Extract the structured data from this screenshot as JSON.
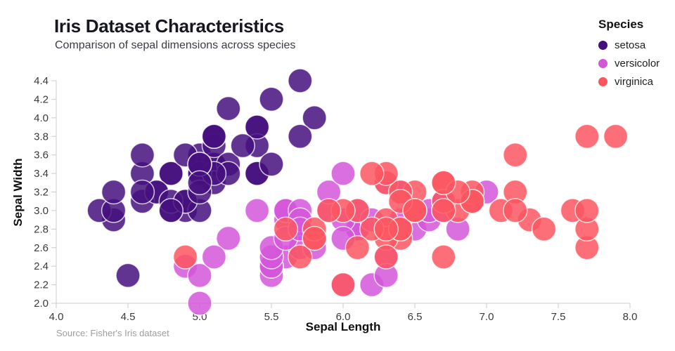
{
  "header": {
    "title": "Iris Dataset Characteristics",
    "subtitle": "Comparison of sepal dimensions across species"
  },
  "legend": {
    "title": "Species"
  },
  "source": {
    "text": "Source: Fisher's Iris dataset"
  },
  "chart_data": {
    "type": "scatter",
    "title": "Iris Dataset Characteristics",
    "subtitle": "Comparison of sepal dimensions across species",
    "xlabel": "Sepal Length",
    "ylabel": "Sepal Width",
    "xlim": [
      4.0,
      8.0
    ],
    "ylim": [
      2.0,
      4.4
    ],
    "grid": false,
    "legend_position": "top-right",
    "x_ticks": [
      "4.0",
      "4.5",
      "5.0",
      "5.5",
      "6.0",
      "6.5",
      "7.0",
      "7.5",
      "8.0"
    ],
    "y_ticks": [
      "2.0",
      "2.2",
      "2.4",
      "2.6",
      "2.8",
      "3.0",
      "3.2",
      "3.4",
      "3.6",
      "3.8",
      "4.0",
      "4.2",
      "4.4"
    ],
    "series": [
      {
        "name": "setosa",
        "color": "#45107e",
        "points": [
          [
            5.1,
            3.5
          ],
          [
            4.9,
            3.0
          ],
          [
            4.7,
            3.2
          ],
          [
            4.6,
            3.1
          ],
          [
            5.0,
            3.6
          ],
          [
            5.4,
            3.9
          ],
          [
            4.6,
            3.4
          ],
          [
            5.0,
            3.4
          ],
          [
            4.4,
            2.9
          ],
          [
            4.9,
            3.1
          ],
          [
            5.4,
            3.7
          ],
          [
            4.8,
            3.4
          ],
          [
            4.8,
            3.0
          ],
          [
            4.3,
            3.0
          ],
          [
            5.8,
            4.0
          ],
          [
            5.7,
            4.4
          ],
          [
            5.4,
            3.9
          ],
          [
            5.1,
            3.5
          ],
          [
            5.7,
            3.8
          ],
          [
            5.1,
            3.8
          ],
          [
            5.4,
            3.4
          ],
          [
            5.1,
            3.7
          ],
          [
            4.6,
            3.6
          ],
          [
            5.1,
            3.3
          ],
          [
            4.8,
            3.4
          ],
          [
            5.0,
            3.0
          ],
          [
            5.0,
            3.4
          ],
          [
            5.2,
            3.5
          ],
          [
            5.2,
            3.4
          ],
          [
            4.7,
            3.2
          ],
          [
            4.8,
            3.1
          ],
          [
            5.4,
            3.4
          ],
          [
            5.2,
            4.1
          ],
          [
            5.5,
            4.2
          ],
          [
            4.9,
            3.1
          ],
          [
            5.0,
            3.2
          ],
          [
            5.5,
            3.5
          ],
          [
            4.9,
            3.6
          ],
          [
            4.4,
            3.0
          ],
          [
            5.1,
            3.4
          ],
          [
            5.0,
            3.5
          ],
          [
            4.5,
            2.3
          ],
          [
            4.4,
            3.2
          ],
          [
            5.0,
            3.5
          ],
          [
            5.1,
            3.8
          ],
          [
            4.8,
            3.0
          ],
          [
            5.1,
            3.8
          ],
          [
            4.6,
            3.2
          ],
          [
            5.3,
            3.7
          ],
          [
            5.0,
            3.3
          ]
        ]
      },
      {
        "name": "versicolor",
        "color": "#d356d9",
        "points": [
          [
            7.0,
            3.2
          ],
          [
            6.4,
            3.2
          ],
          [
            6.9,
            3.1
          ],
          [
            5.5,
            2.3
          ],
          [
            6.5,
            2.8
          ],
          [
            5.7,
            2.8
          ],
          [
            6.3,
            3.3
          ],
          [
            4.9,
            2.4
          ],
          [
            6.6,
            2.9
          ],
          [
            5.2,
            2.7
          ],
          [
            5.0,
            2.0
          ],
          [
            5.9,
            3.0
          ],
          [
            6.0,
            2.2
          ],
          [
            6.1,
            2.9
          ],
          [
            5.6,
            2.9
          ],
          [
            6.7,
            3.1
          ],
          [
            5.6,
            3.0
          ],
          [
            5.8,
            2.7
          ],
          [
            6.2,
            2.2
          ],
          [
            5.6,
            2.5
          ],
          [
            5.9,
            3.2
          ],
          [
            6.1,
            2.8
          ],
          [
            6.3,
            2.5
          ],
          [
            6.1,
            2.8
          ],
          [
            6.4,
            2.9
          ],
          [
            6.6,
            3.0
          ],
          [
            6.8,
            2.8
          ],
          [
            6.7,
            3.0
          ],
          [
            6.0,
            2.9
          ],
          [
            5.7,
            2.6
          ],
          [
            5.5,
            2.4
          ],
          [
            5.5,
            2.4
          ],
          [
            5.8,
            2.7
          ],
          [
            6.0,
            2.7
          ],
          [
            5.4,
            3.0
          ],
          [
            6.0,
            3.4
          ],
          [
            6.7,
            3.1
          ],
          [
            6.3,
            2.3
          ],
          [
            5.6,
            3.0
          ],
          [
            5.5,
            2.5
          ],
          [
            5.5,
            2.6
          ],
          [
            6.1,
            3.0
          ],
          [
            5.8,
            2.6
          ],
          [
            5.0,
            2.3
          ],
          [
            5.6,
            2.7
          ],
          [
            5.7,
            3.0
          ],
          [
            5.7,
            2.9
          ],
          [
            6.2,
            2.9
          ],
          [
            5.1,
            2.5
          ],
          [
            5.7,
            2.8
          ]
        ]
      },
      {
        "name": "virginica",
        "color": "#fb5660",
        "points": [
          [
            6.3,
            3.3
          ],
          [
            5.8,
            2.7
          ],
          [
            7.1,
            3.0
          ],
          [
            6.3,
            2.9
          ],
          [
            6.5,
            3.0
          ],
          [
            7.6,
            3.0
          ],
          [
            4.9,
            2.5
          ],
          [
            7.3,
            2.9
          ],
          [
            6.7,
            2.5
          ],
          [
            7.2,
            3.6
          ],
          [
            6.5,
            3.2
          ],
          [
            6.4,
            2.7
          ],
          [
            6.8,
            3.0
          ],
          [
            5.7,
            2.5
          ],
          [
            5.8,
            2.8
          ],
          [
            6.4,
            3.2
          ],
          [
            6.5,
            3.0
          ],
          [
            7.7,
            3.8
          ],
          [
            7.7,
            2.6
          ],
          [
            6.0,
            2.2
          ],
          [
            6.9,
            3.2
          ],
          [
            5.6,
            2.8
          ],
          [
            7.7,
            2.8
          ],
          [
            6.3,
            2.7
          ],
          [
            6.7,
            3.3
          ],
          [
            7.2,
            3.2
          ],
          [
            6.2,
            2.8
          ],
          [
            6.1,
            3.0
          ],
          [
            6.4,
            2.8
          ],
          [
            7.2,
            3.0
          ],
          [
            7.4,
            2.8
          ],
          [
            7.9,
            3.8
          ],
          [
            6.4,
            2.8
          ],
          [
            6.3,
            2.8
          ],
          [
            6.1,
            2.6
          ],
          [
            7.7,
            3.0
          ],
          [
            6.3,
            3.4
          ],
          [
            6.4,
            3.1
          ],
          [
            6.0,
            3.0
          ],
          [
            6.9,
            3.1
          ],
          [
            6.7,
            3.1
          ],
          [
            6.9,
            3.1
          ],
          [
            5.8,
            2.7
          ],
          [
            6.8,
            3.2
          ],
          [
            6.7,
            3.3
          ],
          [
            6.7,
            3.0
          ],
          [
            6.3,
            2.5
          ],
          [
            6.5,
            3.0
          ],
          [
            6.2,
            3.4
          ],
          [
            5.9,
            3.0
          ]
        ]
      }
    ]
  }
}
